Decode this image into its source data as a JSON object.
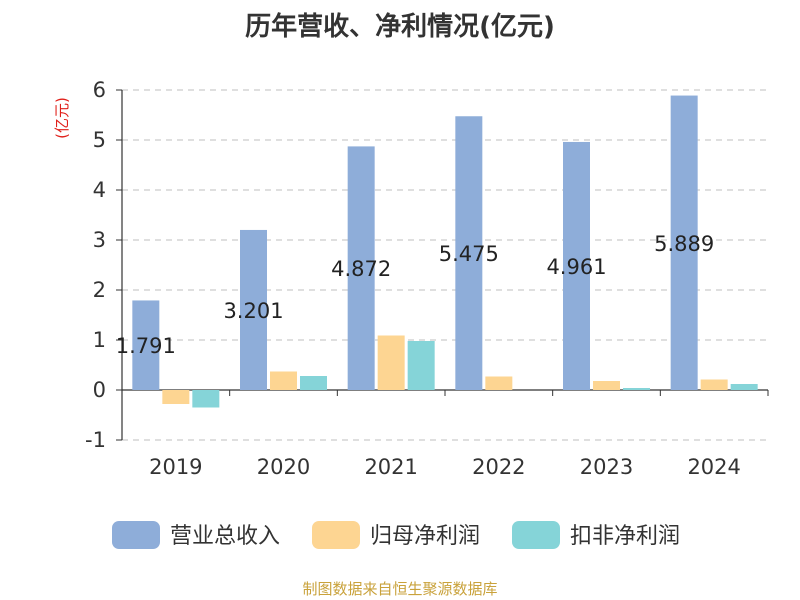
{
  "chart_data": {
    "type": "bar",
    "title": "历年营收、净利情况(亿元)",
    "ylabel": "(亿元)",
    "xlabel": "",
    "categories": [
      "2019",
      "2020",
      "2021",
      "2022",
      "2023",
      "2024"
    ],
    "ylim": [
      -1,
      6
    ],
    "yticks": [
      -1,
      0,
      1,
      2,
      3,
      4,
      5,
      6
    ],
    "grid": true,
    "legend_position": "bottom",
    "series": [
      {
        "name": "营业总收入",
        "color": "#8eadd9",
        "values": [
          1.791,
          3.201,
          4.872,
          5.475,
          4.961,
          5.889
        ],
        "data_labels": [
          "1.791",
          "3.201",
          "4.872",
          "5.475",
          "4.961",
          "5.889"
        ]
      },
      {
        "name": "归母净利润",
        "color": "#fdd592",
        "values": [
          -0.28,
          0.37,
          1.09,
          0.27,
          0.18,
          0.21
        ]
      },
      {
        "name": "扣非净利润",
        "color": "#85d4d8",
        "values": [
          -0.35,
          0.28,
          0.98,
          0.0,
          0.04,
          0.12
        ]
      }
    ],
    "source_note": "制图数据来自恒生聚源数据库"
  }
}
